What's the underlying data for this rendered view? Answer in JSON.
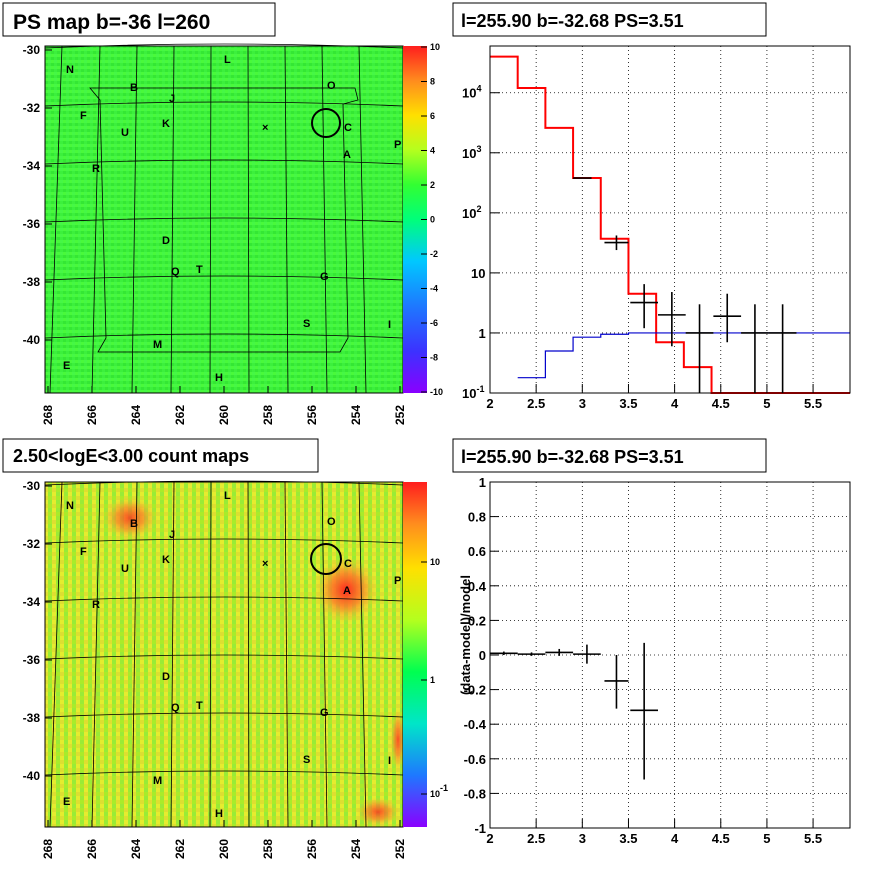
{
  "panels": {
    "tl_title": "PS map b=-36 l=260",
    "tr_title": "l=255.90 b=-32.68 PS=3.51",
    "bl_title": "2.50<logE<3.00 count maps",
    "br_title": "l=255.90 b=-32.68 PS=3.51"
  },
  "map_axes": {
    "y_ticks": [
      "-30",
      "-32",
      "-34",
      "-36",
      "-38",
      "-40"
    ],
    "x_ticks": [
      "268",
      "266",
      "264",
      "262",
      "260",
      "258",
      "256",
      "254",
      "252"
    ]
  },
  "ps_colorbar_ticks": [
    "10",
    "8",
    "6",
    "4",
    "2",
    "0",
    "-2",
    "-4",
    "-6",
    "-8",
    "-10"
  ],
  "count_colorbar_ticks": [
    "10",
    "1",
    "10-1"
  ],
  "source_labels": [
    "N",
    "L",
    "O",
    "B",
    "J",
    "F",
    "K",
    "U",
    "C",
    "P",
    "A",
    "R",
    "D",
    "Q",
    "T",
    "G",
    "S",
    "I",
    "M",
    "E",
    "H"
  ],
  "colors": {
    "model": "#ff0000",
    "background": "#0000cc",
    "data": "#000000"
  },
  "chart_data": [
    {
      "type": "line",
      "title": "l=255.90 b=-32.68 PS=3.51",
      "ylog": true,
      "xlim": [
        2,
        5.9
      ],
      "ylim": [
        0.1,
        60000
      ],
      "x_ticks": [
        "2",
        "2.5",
        "3",
        "3.5",
        "4",
        "4.5",
        "5",
        "5.5"
      ],
      "y_ticks": [
        "10-1",
        "1",
        "10",
        "102",
        "103",
        "104"
      ],
      "series": [
        {
          "kind": "step",
          "color": "#ff0000",
          "edges": [
            2,
            2.3,
            2.6,
            2.9,
            3.2,
            3.5,
            3.8,
            4.1,
            4.4,
            4.7,
            5.9
          ],
          "values": [
            40000,
            12000,
            2600,
            380,
            37,
            4.5,
            0.7,
            0.27,
            0.1,
            0.1
          ]
        },
        {
          "kind": "step",
          "color": "#0000cc",
          "edges": [
            2.3,
            2.6,
            2.9,
            3.2,
            3.5,
            3.8,
            4.1,
            4.4,
            5.9
          ],
          "values": [
            0.18,
            0.5,
            0.85,
            0.95,
            1.0,
            1.0,
            1.0,
            1.0
          ]
        },
        {
          "kind": "errors",
          "color": "#000000",
          "points": [
            {
              "x": 3.0,
              "xerr": 0.1,
              "y": 380,
              "ylo": 380,
              "yhi": 380
            },
            {
              "x": 3.37,
              "xerr": 0.13,
              "y": 32,
              "ylo": 24,
              "yhi": 42
            },
            {
              "x": 3.67,
              "xerr": 0.15,
              "y": 3.2,
              "ylo": 1.2,
              "yhi": 6.5
            },
            {
              "x": 3.97,
              "xerr": 0.15,
              "y": 2.0,
              "ylo": 0.6,
              "yhi": 4.8
            },
            {
              "x": 4.27,
              "xerr": 0.15,
              "y": 1.0,
              "ylo": 0.1,
              "yhi": 3.0
            },
            {
              "x": 4.57,
              "xerr": 0.15,
              "y": 1.9,
              "ylo": 0.7,
              "yhi": 4.5
            },
            {
              "x": 4.87,
              "xerr": 0.15,
              "y": 1.0,
              "ylo": 0.1,
              "yhi": 3.0
            },
            {
              "x": 5.17,
              "xerr": 0.15,
              "y": 1.0,
              "ylo": 0.1,
              "yhi": 3.0
            }
          ]
        }
      ]
    },
    {
      "type": "scatter",
      "title": "l=255.90 b=-32.68 PS=3.51",
      "xlim": [
        2,
        5.9
      ],
      "ylim": [
        -1,
        1
      ],
      "ylabel": "(data-model)/model",
      "x_ticks": [
        "2",
        "2.5",
        "3",
        "3.5",
        "4",
        "4.5",
        "5",
        "5.5"
      ],
      "y_ticks": [
        "1",
        "0.8",
        "0.6",
        "0.4",
        "0.2",
        "0",
        "-0.2",
        "-0.4",
        "-0.6",
        "-0.8",
        "-1"
      ],
      "points": [
        {
          "x": 2.15,
          "xerr": 0.15,
          "y": 0.01,
          "ylo": 0.0,
          "yhi": 0.02
        },
        {
          "x": 2.45,
          "xerr": 0.15,
          "y": 0.005,
          "ylo": -0.005,
          "yhi": 0.015
        },
        {
          "x": 2.75,
          "xerr": 0.15,
          "y": 0.015,
          "ylo": -0.005,
          "yhi": 0.035
        },
        {
          "x": 3.05,
          "xerr": 0.15,
          "y": 0.005,
          "ylo": -0.05,
          "yhi": 0.06
        },
        {
          "x": 3.37,
          "xerr": 0.13,
          "y": -0.15,
          "ylo": -0.31,
          "yhi": 0.0
        },
        {
          "x": 3.67,
          "xerr": 0.15,
          "y": -0.32,
          "ylo": -0.72,
          "yhi": 0.07
        }
      ]
    }
  ]
}
